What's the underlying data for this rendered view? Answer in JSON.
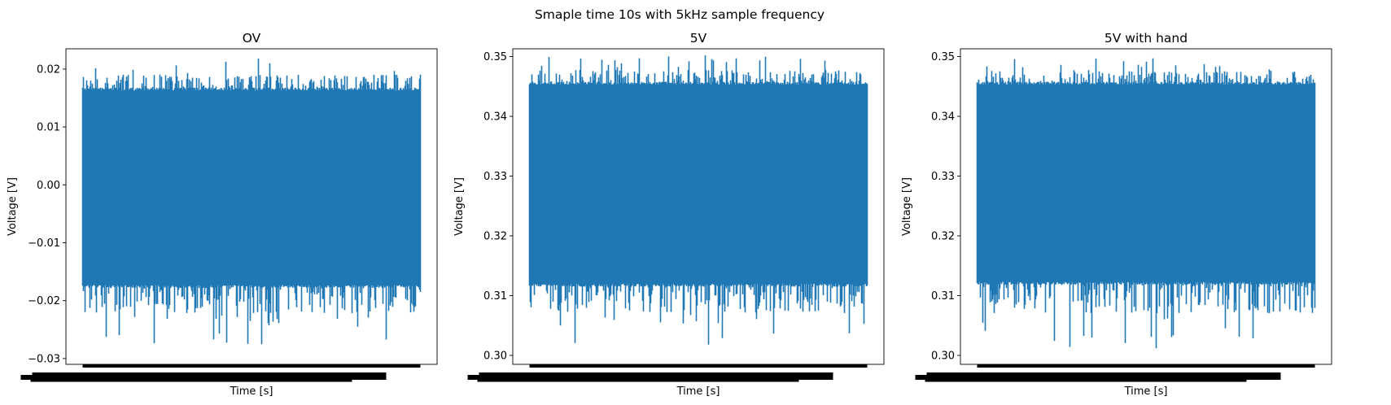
{
  "chart_data": {
    "suptitle": "Smaple time 10s with 5kHz sample frequency",
    "series_color": "#1f77b4",
    "x_range_s": [
      0,
      10
    ],
    "samples_per_panel": 50000,
    "panels": [
      {
        "type": "line",
        "title": "OV",
        "xlabel": "Time [s]",
        "ylabel": "Voltage [V]",
        "ylim": [
          -0.031,
          0.0235
        ],
        "yticks": [
          -0.03,
          -0.02,
          -0.01,
          0.0,
          0.01,
          0.02
        ],
        "ytick_labels": [
          "−0.03",
          "−0.02",
          "−0.01",
          "0.00",
          "0.01",
          "0.02"
        ],
        "signal": {
          "center": -0.0005,
          "band_low": -0.0178,
          "band_high": 0.0168,
          "max": 0.0218,
          "min": -0.0275
        }
      },
      {
        "type": "line",
        "title": "5V",
        "xlabel": "Time [s]",
        "ylabel": "Voltage [V]",
        "ylim": [
          0.2985,
          0.3513
        ],
        "yticks": [
          0.3,
          0.31,
          0.32,
          0.33,
          0.34,
          0.35
        ],
        "ytick_labels": [
          "0.30",
          "0.31",
          "0.32",
          "0.33",
          "0.34",
          "0.35"
        ],
        "signal": {
          "center": 0.3285,
          "band_low": 0.3115,
          "band_high": 0.3458,
          "max": 0.3502,
          "min": 0.3018
        }
      },
      {
        "type": "line",
        "title": "5V with hand",
        "xlabel": "Time [s]",
        "ylabel": "Voltage [V]",
        "ylim": [
          0.2985,
          0.3513
        ],
        "yticks": [
          0.3,
          0.31,
          0.32,
          0.33,
          0.34,
          0.35
        ],
        "ytick_labels": [
          "0.30",
          "0.31",
          "0.32",
          "0.33",
          "0.34",
          "0.35"
        ],
        "signal": {
          "center": 0.3285,
          "band_low": 0.3118,
          "band_high": 0.3458,
          "max": 0.3497,
          "min": 0.3012
        }
      }
    ]
  }
}
